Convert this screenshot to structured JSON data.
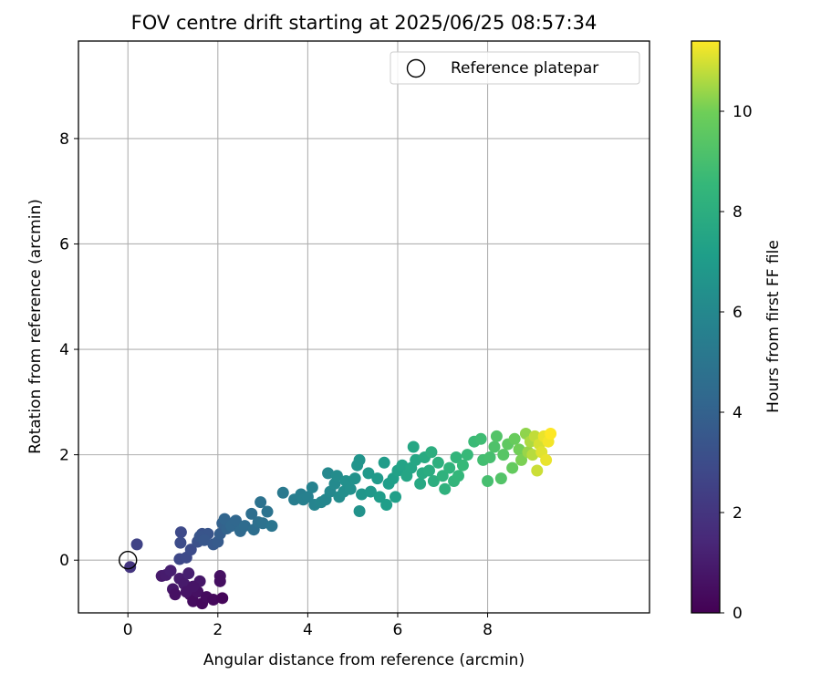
{
  "chart_data": {
    "type": "scatter",
    "title": "FOV centre drift starting at 2025/06/25 08:57:34",
    "xlabel": "Angular distance from reference (arcmin)",
    "ylabel": "Rotation from reference (arcmin)",
    "xlim": [
      -1.1,
      11.6
    ],
    "ylim": [
      -1.0,
      9.85
    ],
    "xticks": [
      0,
      2,
      4,
      6,
      8
    ],
    "yticks": [
      0,
      2,
      4,
      6,
      8
    ],
    "grid": true,
    "legend": {
      "placement": "top-right",
      "entries": [
        "Reference platepar"
      ]
    },
    "reference_point": {
      "x": 0,
      "y": 0,
      "label": "Reference platepar"
    },
    "colorbar": {
      "label": "Hours from first FF file",
      "range": [
        0,
        11.4
      ],
      "ticks": [
        0,
        2,
        4,
        6,
        8,
        10
      ],
      "colormap": "viridis"
    },
    "points": [
      [
        0.05,
        -0.13,
        2.0
      ],
      [
        0.2,
        0.3,
        2.6
      ],
      [
        1.18,
        0.53,
        2.9
      ],
      [
        1.17,
        0.33,
        3.0
      ],
      [
        1.15,
        0.02,
        2.8
      ],
      [
        1.3,
        0.05,
        2.9
      ],
      [
        1.4,
        0.2,
        3.0
      ],
      [
        1.55,
        0.35,
        3.2
      ],
      [
        1.65,
        0.5,
        3.3
      ],
      [
        1.78,
        0.5,
        3.4
      ],
      [
        1.6,
        0.45,
        3.4
      ],
      [
        1.7,
        0.38,
        3.5
      ],
      [
        1.9,
        0.3,
        3.6
      ],
      [
        2.0,
        0.35,
        3.7
      ],
      [
        2.05,
        0.5,
        3.8
      ],
      [
        2.1,
        0.7,
        4.0
      ],
      [
        2.2,
        0.6,
        4.1
      ],
      [
        2.15,
        0.78,
        4.2
      ],
      [
        2.3,
        0.65,
        4.3
      ],
      [
        2.4,
        0.75,
        4.3
      ],
      [
        2.5,
        0.55,
        4.4
      ],
      [
        2.6,
        0.65,
        4.5
      ],
      [
        2.75,
        0.88,
        4.6
      ],
      [
        2.8,
        0.58,
        4.6
      ],
      [
        2.9,
        0.72,
        4.7
      ],
      [
        2.95,
        1.1,
        4.8
      ],
      [
        3.0,
        0.7,
        4.8
      ],
      [
        3.1,
        0.92,
        4.9
      ],
      [
        3.2,
        0.65,
        5.0
      ],
      [
        3.45,
        1.28,
        5.2
      ],
      [
        3.7,
        1.15,
        5.4
      ],
      [
        3.85,
        1.25,
        5.5
      ],
      [
        3.9,
        1.15,
        5.6
      ],
      [
        4.0,
        1.2,
        5.6
      ],
      [
        4.1,
        1.38,
        5.7
      ],
      [
        4.15,
        1.05,
        5.8
      ],
      [
        4.3,
        1.1,
        5.9
      ],
      [
        4.4,
        1.15,
        5.9
      ],
      [
        4.45,
        1.65,
        6.0
      ],
      [
        4.5,
        1.3,
        6.0
      ],
      [
        4.6,
        1.45,
        6.1
      ],
      [
        4.65,
        1.6,
        6.2
      ],
      [
        4.7,
        1.2,
        6.2
      ],
      [
        4.8,
        1.3,
        6.3
      ],
      [
        4.85,
        1.5,
        6.4
      ],
      [
        4.95,
        1.35,
        6.4
      ],
      [
        5.05,
        1.55,
        6.5
      ],
      [
        5.1,
        1.8,
        6.6
      ],
      [
        5.15,
        1.9,
        6.6
      ],
      [
        5.15,
        0.93,
        6.5
      ],
      [
        5.2,
        1.25,
        6.7
      ],
      [
        5.35,
        1.65,
        6.8
      ],
      [
        5.4,
        1.3,
        6.8
      ],
      [
        5.55,
        1.55,
        6.9
      ],
      [
        5.6,
        1.2,
        7.0
      ],
      [
        5.7,
        1.85,
        7.0
      ],
      [
        5.75,
        1.05,
        7.1
      ],
      [
        5.8,
        1.45,
        7.1
      ],
      [
        5.9,
        1.55,
        7.2
      ],
      [
        5.95,
        1.2,
        7.2
      ],
      [
        6.0,
        1.7,
        7.3
      ],
      [
        6.1,
        1.8,
        7.4
      ],
      [
        6.2,
        1.6,
        7.5
      ],
      [
        6.3,
        1.75,
        7.5
      ],
      [
        6.35,
        2.15,
        7.6
      ],
      [
        6.4,
        1.9,
        7.6
      ],
      [
        6.5,
        1.45,
        7.7
      ],
      [
        6.55,
        1.65,
        7.8
      ],
      [
        6.6,
        1.95,
        7.8
      ],
      [
        6.7,
        1.7,
        7.9
      ],
      [
        6.75,
        2.05,
        8.0
      ],
      [
        6.8,
        1.5,
        8.0
      ],
      [
        6.9,
        1.85,
        8.1
      ],
      [
        7.0,
        1.6,
        8.2
      ],
      [
        7.05,
        1.35,
        8.2
      ],
      [
        7.15,
        1.75,
        8.3
      ],
      [
        7.25,
        1.5,
        8.4
      ],
      [
        7.3,
        1.95,
        8.4
      ],
      [
        7.35,
        1.6,
        8.5
      ],
      [
        7.45,
        1.8,
        8.6
      ],
      [
        7.55,
        2.0,
        8.6
      ],
      [
        7.7,
        2.25,
        8.7
      ],
      [
        7.85,
        2.3,
        8.8
      ],
      [
        7.9,
        1.9,
        8.9
      ],
      [
        8.0,
        1.5,
        9.0
      ],
      [
        8.05,
        1.95,
        9.0
      ],
      [
        8.15,
        2.15,
        9.2
      ],
      [
        8.2,
        2.35,
        9.3
      ],
      [
        8.3,
        1.55,
        9.3
      ],
      [
        8.35,
        2.0,
        9.4
      ],
      [
        8.45,
        2.2,
        9.6
      ],
      [
        8.55,
        1.75,
        9.7
      ],
      [
        8.6,
        2.3,
        9.8
      ],
      [
        8.7,
        2.1,
        10.0
      ],
      [
        8.75,
        1.9,
        10.1
      ],
      [
        8.85,
        2.4,
        10.3
      ],
      [
        8.9,
        2.05,
        10.4
      ],
      [
        8.95,
        2.25,
        10.6
      ],
      [
        9.0,
        2.0,
        10.7
      ],
      [
        9.05,
        2.35,
        10.8
      ],
      [
        9.1,
        1.7,
        10.9
      ],
      [
        9.15,
        2.2,
        11.0
      ],
      [
        9.2,
        2.05,
        11.1
      ],
      [
        9.25,
        2.35,
        11.2
      ],
      [
        9.3,
        1.9,
        11.2
      ],
      [
        9.35,
        2.25,
        11.3
      ],
      [
        9.4,
        2.4,
        11.4
      ],
      [
        0.75,
        -0.3,
        0.9
      ],
      [
        0.85,
        -0.28,
        1.0
      ],
      [
        0.95,
        -0.2,
        1.1
      ],
      [
        1.0,
        -0.55,
        0.8
      ],
      [
        1.05,
        -0.65,
        0.6
      ],
      [
        1.15,
        -0.35,
        1.0
      ],
      [
        1.25,
        -0.45,
        0.9
      ],
      [
        1.35,
        -0.25,
        1.1
      ],
      [
        1.38,
        -0.65,
        0.5
      ],
      [
        1.45,
        -0.78,
        0.4
      ],
      [
        1.55,
        -0.6,
        0.6
      ],
      [
        1.6,
        -0.4,
        0.8
      ],
      [
        1.65,
        -0.82,
        0.3
      ],
      [
        1.75,
        -0.7,
        0.4
      ],
      [
        1.9,
        -0.75,
        0.3
      ],
      [
        2.05,
        -0.3,
        0.6
      ],
      [
        2.05,
        -0.4,
        0.5
      ],
      [
        2.1,
        -0.72,
        0.2
      ],
      [
        1.3,
        -0.6,
        0.7
      ],
      [
        1.45,
        -0.5,
        0.7
      ]
    ]
  }
}
